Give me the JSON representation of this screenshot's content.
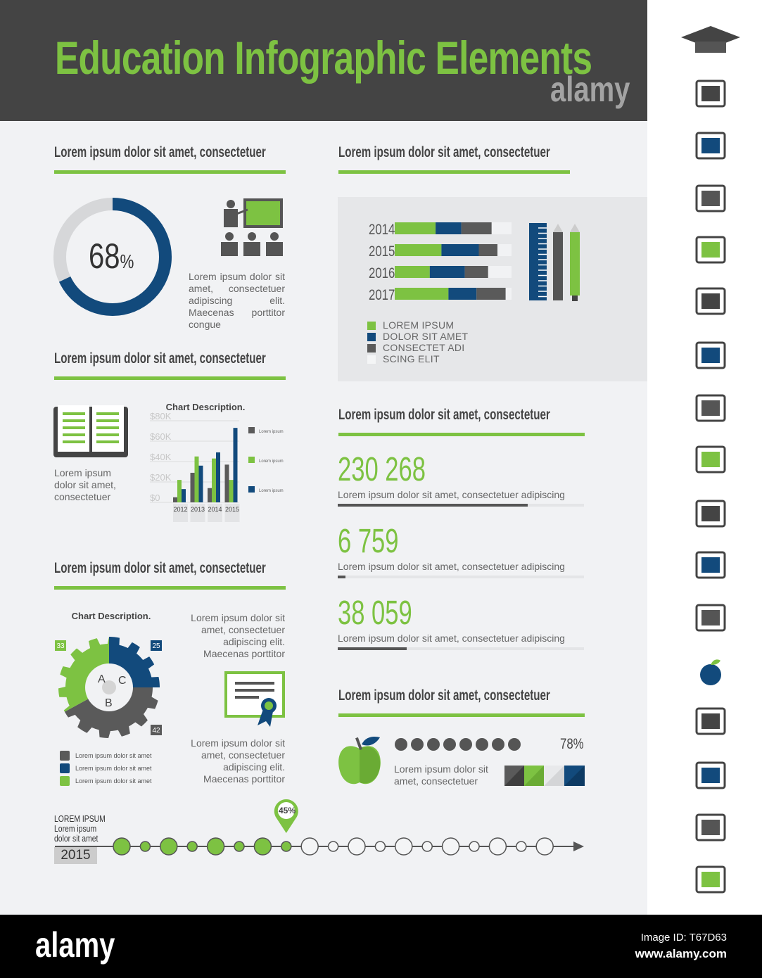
{
  "header": {
    "title": "Education Infographic Elements",
    "watermark": "alamy"
  },
  "colors": {
    "green": "#7dc242",
    "blue": "#124a7c",
    "gray": "#5a5a5a",
    "light": "#e9eaec",
    "dark": "#444444"
  },
  "sections": {
    "donut": {
      "heading": "Lorem ipsum dolor sit amet, consectetuer",
      "value": "68",
      "unit": "%",
      "percent": 68,
      "text": "Lorem ipsum dolor sit amet, consectetuer adipiscing elit. Maecenas porttitor congue"
    },
    "book": {
      "heading": "Lorem ipsum dolor sit amet, consectetuer",
      "text": "Lorem ipsum dolor sit amet, consectetuer"
    },
    "gear": {
      "heading": "Lorem ipsum dolor sit amet, consectetuer",
      "text1": "Lorem ipsum dolor sit amet, consectetuer adipiscing elit. Maecenas porttitor",
      "text2": "Lorem ipsum dolor sit amet, consectetuer adipiscing elit. Maecenas porttitor"
    },
    "stacked": {
      "heading": "Lorem ipsum dolor sit amet, consectetuer"
    },
    "stats": {
      "heading": "Lorem ipsum dolor sit amet, consectetuer",
      "items": [
        {
          "value": "230 268",
          "label": "Lorem ipsum dolor sit amet, consectetuer adipiscing",
          "progress": 77
        },
        {
          "value": "6 759",
          "label": "Lorem ipsum dolor sit amet, consectetuer adipiscing",
          "progress": 3
        },
        {
          "value": "38 059",
          "label": "Lorem ipsum dolor sit amet, consectetuer adipiscing",
          "progress": 28
        }
      ]
    },
    "apple": {
      "heading": "Lorem ipsum dolor sit amet, consectetuer",
      "value": "78%",
      "percent": 78,
      "dots": 11,
      "text": "Lorem ipsum dolor sit amet, consectetuer"
    },
    "timeline": {
      "title": "LOREM IPSUM",
      "sub1": "Lorem ipsum",
      "sub2": "dolor sit amet",
      "year": "2015",
      "pin": "45%",
      "percent": 45,
      "steps": 19,
      "filled": 8
    }
  },
  "chart_data": [
    {
      "type": "bar",
      "title": "Chart Description.",
      "categories": [
        "2012",
        "2013",
        "2014",
        "2015"
      ],
      "ytick_labels": [
        "$0",
        "$20K",
        "$40K",
        "$60K",
        "$80K"
      ],
      "ylim": [
        0,
        80
      ],
      "series": [
        {
          "name": "Lorem ipsum",
          "color": "#5a5a5a",
          "values": [
            5,
            29,
            14,
            37
          ]
        },
        {
          "name": "Lorem ipsum",
          "color": "#7dc242",
          "values": [
            22,
            45,
            43,
            22
          ]
        },
        {
          "name": "Lorem ipsum",
          "color": "#124a7c",
          "values": [
            13,
            36,
            49,
            73
          ]
        }
      ]
    },
    {
      "type": "bar",
      "orientation": "horizontal-stacked",
      "categories": [
        "2014",
        "2015",
        "2016",
        "2017"
      ],
      "series": [
        {
          "name": "LOREM IPSUM",
          "color": "#7dc242",
          "values": [
            35,
            40,
            30,
            46
          ]
        },
        {
          "name": "DOLOR SIT AMET",
          "color": "#124a7c",
          "values": [
            22,
            32,
            30,
            24
          ]
        },
        {
          "name": "CONSECTET ADI",
          "color": "#5a5a5a",
          "values": [
            26,
            16,
            20,
            25
          ]
        },
        {
          "name": "SCING ELIT",
          "color": "#f1f2f4",
          "values": [
            17,
            12,
            20,
            5
          ]
        }
      ]
    },
    {
      "type": "pie",
      "title": "Chart Description.",
      "labels": [
        "A",
        "B",
        "C"
      ],
      "values": [
        33,
        42,
        25
      ],
      "colors": [
        "#7dc242",
        "#5a5a5a",
        "#124a7c"
      ],
      "legend": [
        "Lorem ipsum dolor sit amet",
        "Lorem ipsum dolor sit amet",
        "Lorem ipsum dolor sit amet"
      ]
    }
  ],
  "sidebar_icons": [
    "graduation-cap-icon",
    "notepad-pencil-icon",
    "certificate-icon",
    "calculator-icon",
    "open-book-icon",
    "teacher-board-icon",
    "students-icon",
    "graduate-icon",
    "student-desk-icon",
    "professor-icon",
    "laptop-lecture-icon",
    "books-apple-icon",
    "apple-icon",
    "tablet-icon",
    "books-shelf-icon",
    "compass-icon",
    "microscope-icon"
  ],
  "footer": {
    "logo": "alamy",
    "image_id": "Image ID: T67D63",
    "url": "www.alamy.com"
  }
}
